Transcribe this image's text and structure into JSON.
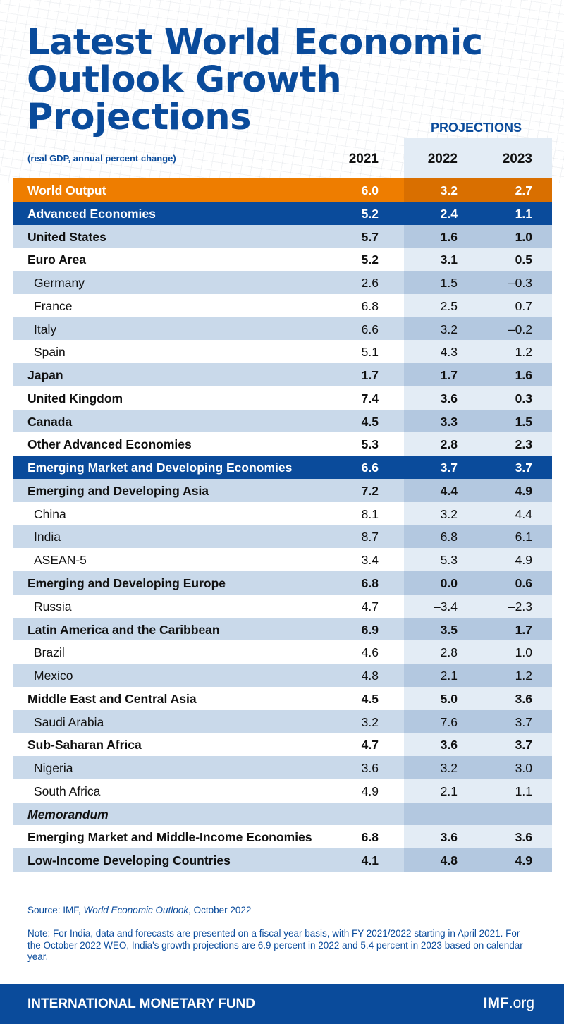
{
  "title_line1": "Latest World Economic",
  "title_line2": "Outlook Growth Projections",
  "chart_data": {
    "type": "table",
    "subtitle": "(real GDP, annual percent change)",
    "projections_label": "PROJECTIONS",
    "columns": [
      "2021",
      "2022",
      "2023"
    ],
    "rows": [
      {
        "label": "World Output",
        "style": "orange",
        "values": [
          "6.0",
          "3.2",
          "2.7"
        ]
      },
      {
        "label": "Advanced Economies",
        "style": "blue",
        "values": [
          "5.2",
          "2.4",
          "1.1"
        ]
      },
      {
        "label": "United States",
        "style": "bold",
        "values": [
          "5.7",
          "1.6",
          "1.0"
        ]
      },
      {
        "label": "Euro Area",
        "style": "bold",
        "values": [
          "5.2",
          "3.1",
          "0.5"
        ]
      },
      {
        "label": "Germany",
        "style": "indent",
        "values": [
          "2.6",
          "1.5",
          "–0.3"
        ]
      },
      {
        "label": "France",
        "style": "indent",
        "values": [
          "6.8",
          "2.5",
          "0.7"
        ]
      },
      {
        "label": "Italy",
        "style": "indent",
        "values": [
          "6.6",
          "3.2",
          "–0.2"
        ]
      },
      {
        "label": "Spain",
        "style": "indent",
        "values": [
          "5.1",
          "4.3",
          "1.2"
        ]
      },
      {
        "label": "Japan",
        "style": "bold",
        "values": [
          "1.7",
          "1.7",
          "1.6"
        ]
      },
      {
        "label": "United Kingdom",
        "style": "bold",
        "values": [
          "7.4",
          "3.6",
          "0.3"
        ]
      },
      {
        "label": "Canada",
        "style": "bold",
        "values": [
          "4.5",
          "3.3",
          "1.5"
        ]
      },
      {
        "label": "Other Advanced Economies",
        "style": "bold",
        "values": [
          "5.3",
          "2.8",
          "2.3"
        ]
      },
      {
        "label": "Emerging Market and Developing Economies",
        "style": "blue",
        "values": [
          "6.6",
          "3.7",
          "3.7"
        ]
      },
      {
        "label": "Emerging and Developing Asia",
        "style": "bold",
        "values": [
          "7.2",
          "4.4",
          "4.9"
        ]
      },
      {
        "label": "China",
        "style": "indent",
        "values": [
          "8.1",
          "3.2",
          "4.4"
        ]
      },
      {
        "label": "India",
        "style": "indent",
        "values": [
          "8.7",
          "6.8",
          "6.1"
        ]
      },
      {
        "label": "ASEAN-5",
        "style": "indent",
        "values": [
          "3.4",
          "5.3",
          "4.9"
        ]
      },
      {
        "label": "Emerging and Developing Europe",
        "style": "bold",
        "values": [
          "6.8",
          "0.0",
          "0.6"
        ]
      },
      {
        "label": "Russia",
        "style": "indent",
        "values": [
          "4.7",
          "–3.4",
          "–2.3"
        ]
      },
      {
        "label": "Latin America and the Caribbean",
        "style": "bold",
        "values": [
          "6.9",
          "3.5",
          "1.7"
        ]
      },
      {
        "label": "Brazil",
        "style": "indent",
        "values": [
          "4.6",
          "2.8",
          "1.0"
        ]
      },
      {
        "label": "Mexico",
        "style": "indent",
        "values": [
          "4.8",
          "2.1",
          "1.2"
        ]
      },
      {
        "label": "Middle East and Central Asia",
        "style": "bold",
        "values": [
          "4.5",
          "5.0",
          "3.6"
        ]
      },
      {
        "label": "Saudi Arabia",
        "style": "indent",
        "values": [
          "3.2",
          "7.6",
          "3.7"
        ]
      },
      {
        "label": "Sub-Saharan Africa",
        "style": "bold",
        "values": [
          "4.7",
          "3.6",
          "3.7"
        ]
      },
      {
        "label": "Nigeria",
        "style": "indent",
        "values": [
          "3.6",
          "3.2",
          "3.0"
        ]
      },
      {
        "label": "South Africa",
        "style": "indent",
        "values": [
          "4.9",
          "2.1",
          "1.1"
        ]
      },
      {
        "label": "Memorandum",
        "style": "memo",
        "values": [
          "",
          "",
          ""
        ]
      },
      {
        "label": "Emerging Market and Middle-Income Economies",
        "style": "bold",
        "values": [
          "6.8",
          "3.6",
          "3.6"
        ]
      },
      {
        "label": "Low-Income Developing Countries",
        "style": "bold",
        "values": [
          "4.1",
          "4.8",
          "4.9"
        ]
      }
    ]
  },
  "source_prefix": "Source: IMF, ",
  "source_title": "World Economic Outlook",
  "source_suffix": ", October 2022",
  "note": "Note: For India, data and forecasts are presented on a fiscal year basis, with FY 2021/2022 starting in April 2021. For the October 2022 WEO, India's growth projections are 6.9 percent in 2022 and 5.4 percent in 2023 based on calendar year.",
  "footer": {
    "org": "INTERNATIONAL MONETARY FUND",
    "site_bold": "IMF",
    "site_rest": ".org"
  },
  "colors": {
    "brand_blue": "#0a4b9b",
    "orange": "#ee7d00",
    "stripe": "#c9d9ea"
  }
}
